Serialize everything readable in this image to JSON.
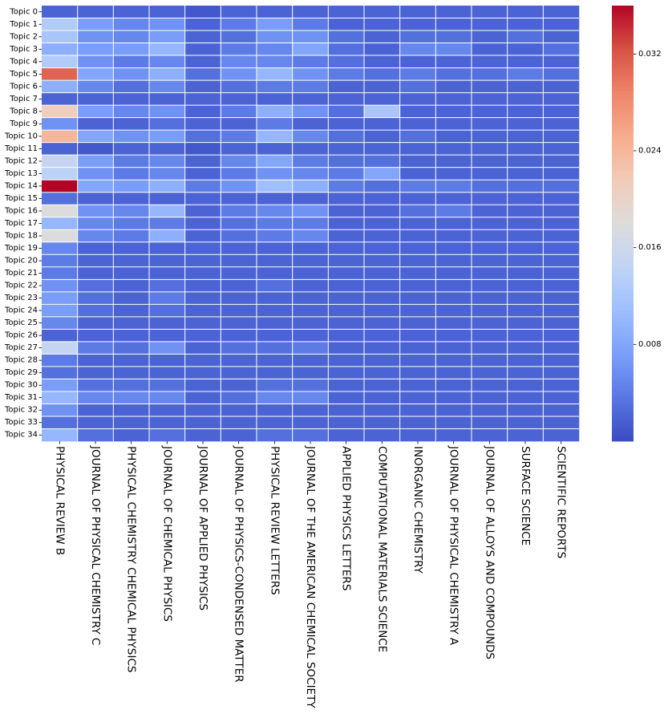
{
  "chart_data": {
    "type": "heatmap",
    "title": "",
    "xlabel": "",
    "ylabel": "",
    "rows": [
      "Topic 0",
      "Topic 1",
      "Topic 2",
      "Topic 3",
      "Topic 4",
      "Topic 5",
      "Topic 6",
      "Topic 7",
      "Topic 8",
      "Topic 9",
      "Topic 10",
      "Topic 11",
      "Topic 12",
      "Topic 13",
      "Topic 14",
      "Topic 15",
      "Topic 16",
      "Topic 17",
      "Topic 18",
      "Topic 19",
      "Topic 20",
      "Topic 21",
      "Topic 22",
      "Topic 23",
      "Topic 24",
      "Topic 25",
      "Topic 26",
      "Topic 27",
      "Topic 28",
      "Topic 29",
      "Topic 30",
      "Topic 31",
      "Topic 32",
      "Topic 33",
      "Topic 34"
    ],
    "columns": [
      "PHYSICAL REVIEW B",
      "JOURNAL OF PHYSICAL CHEMISTRY C",
      "PHYSICAL CHEMISTRY CHEMICAL PHYSICS",
      "JOURNAL OF CHEMICAL PHYSICS",
      "JOURNAL OF APPLIED PHYSICS",
      "JOURNAL OF PHYSICS-CONDENSED MATTER",
      "PHYSICAL REVIEW LETTERS",
      "JOURNAL OF THE AMERICAN CHEMICAL SOCIETY",
      "APPLIED PHYSICS LETTERS",
      "COMPUTATIONAL MATERIALS SCIENCE",
      "INORGANIC CHEMISTRY",
      "JOURNAL OF PHYSICAL CHEMISTRY A",
      "JOURNAL OF ALLOYS AND COMPOUNDS",
      "SURFACE SCIENCE",
      "SCIENTIFIC REPORTS"
    ],
    "values": [
      [
        0.002,
        0.002,
        0.002,
        0.002,
        0.001,
        0.002,
        0.002,
        0.002,
        0.002,
        0.002,
        0.002,
        0.002,
        0.002,
        0.002,
        0.002
      ],
      [
        0.013,
        0.007,
        0.005,
        0.006,
        0.002,
        0.004,
        0.007,
        0.004,
        0.002,
        0.002,
        0.002,
        0.002,
        0.002,
        0.002,
        0.002
      ],
      [
        0.012,
        0.006,
        0.005,
        0.007,
        0.002,
        0.003,
        0.006,
        0.006,
        0.003,
        0.002,
        0.003,
        0.003,
        0.002,
        0.003,
        0.002
      ],
      [
        0.009,
        0.007,
        0.007,
        0.01,
        0.002,
        0.004,
        0.005,
        0.008,
        0.003,
        0.002,
        0.005,
        0.005,
        0.002,
        0.002,
        0.003
      ],
      [
        0.013,
        0.006,
        0.004,
        0.005,
        0.002,
        0.005,
        0.005,
        0.004,
        0.003,
        0.002,
        0.002,
        0.002,
        0.002,
        0.002,
        0.002
      ],
      [
        0.031,
        0.008,
        0.006,
        0.009,
        0.003,
        0.006,
        0.01,
        0.006,
        0.004,
        0.003,
        0.004,
        0.003,
        0.003,
        0.004,
        0.003
      ],
      [
        0.009,
        0.005,
        0.003,
        0.005,
        0.002,
        0.003,
        0.004,
        0.004,
        0.002,
        0.002,
        0.003,
        0.002,
        0.002,
        0.002,
        0.002
      ],
      [
        0.002,
        0.002,
        0.002,
        0.002,
        0.002,
        0.002,
        0.002,
        0.002,
        0.002,
        0.002,
        0.002,
        0.002,
        0.002,
        0.002,
        0.002
      ],
      [
        0.021,
        0.007,
        0.005,
        0.006,
        0.002,
        0.004,
        0.009,
        0.006,
        0.003,
        0.012,
        0.002,
        0.002,
        0.002,
        0.002,
        0.002
      ],
      [
        0.006,
        0.002,
        0.002,
        0.003,
        0.002,
        0.002,
        0.004,
        0.002,
        0.002,
        0.002,
        0.002,
        0.002,
        0.002,
        0.002,
        0.002
      ],
      [
        0.024,
        0.008,
        0.006,
        0.007,
        0.003,
        0.004,
        0.01,
        0.005,
        0.003,
        0.002,
        0.003,
        0.002,
        0.002,
        0.002,
        0.002
      ],
      [
        0.002,
        0.001,
        0.002,
        0.002,
        0.001,
        0.002,
        0.002,
        0.002,
        0.002,
        0.002,
        0.002,
        0.002,
        0.002,
        0.002,
        0.002
      ],
      [
        0.015,
        0.007,
        0.004,
        0.005,
        0.002,
        0.005,
        0.008,
        0.004,
        0.003,
        0.003,
        0.002,
        0.002,
        0.002,
        0.002,
        0.002
      ],
      [
        0.014,
        0.006,
        0.004,
        0.005,
        0.002,
        0.004,
        0.006,
        0.005,
        0.004,
        0.008,
        0.002,
        0.002,
        0.002,
        0.002,
        0.002
      ],
      [
        0.036,
        0.008,
        0.007,
        0.009,
        0.004,
        0.006,
        0.011,
        0.009,
        0.004,
        0.003,
        0.004,
        0.004,
        0.003,
        0.003,
        0.003
      ],
      [
        0.003,
        0.002,
        0.002,
        0.002,
        0.002,
        0.002,
        0.002,
        0.002,
        0.002,
        0.002,
        0.002,
        0.002,
        0.002,
        0.002,
        0.002
      ],
      [
        0.018,
        0.006,
        0.005,
        0.01,
        0.002,
        0.004,
        0.005,
        0.006,
        0.002,
        0.002,
        0.003,
        0.004,
        0.002,
        0.002,
        0.002
      ],
      [
        0.01,
        0.005,
        0.004,
        0.004,
        0.002,
        0.003,
        0.004,
        0.004,
        0.002,
        0.002,
        0.002,
        0.002,
        0.002,
        0.002,
        0.002
      ],
      [
        0.018,
        0.005,
        0.004,
        0.009,
        0.002,
        0.003,
        0.004,
        0.005,
        0.002,
        0.002,
        0.002,
        0.002,
        0.002,
        0.002,
        0.002
      ],
      [
        0.005,
        0.002,
        0.002,
        0.002,
        0.002,
        0.002,
        0.002,
        0.002,
        0.002,
        0.002,
        0.002,
        0.002,
        0.002,
        0.002,
        0.002
      ],
      [
        0.004,
        0.002,
        0.002,
        0.002,
        0.002,
        0.002,
        0.002,
        0.002,
        0.002,
        0.002,
        0.002,
        0.002,
        0.002,
        0.002,
        0.002
      ],
      [
        0.004,
        0.002,
        0.002,
        0.002,
        0.002,
        0.002,
        0.002,
        0.002,
        0.002,
        0.002,
        0.002,
        0.002,
        0.002,
        0.002,
        0.002
      ],
      [
        0.006,
        0.003,
        0.002,
        0.003,
        0.002,
        0.002,
        0.003,
        0.002,
        0.002,
        0.002,
        0.002,
        0.002,
        0.002,
        0.002,
        0.002
      ],
      [
        0.007,
        0.003,
        0.002,
        0.004,
        0.002,
        0.002,
        0.002,
        0.002,
        0.002,
        0.002,
        0.002,
        0.002,
        0.002,
        0.002,
        0.002
      ],
      [
        0.007,
        0.003,
        0.002,
        0.003,
        0.002,
        0.002,
        0.002,
        0.002,
        0.002,
        0.002,
        0.002,
        0.002,
        0.002,
        0.002,
        0.002
      ],
      [
        0.005,
        0.002,
        0.002,
        0.002,
        0.002,
        0.002,
        0.002,
        0.002,
        0.002,
        0.002,
        0.002,
        0.002,
        0.002,
        0.002,
        0.002
      ],
      [
        0.002,
        0.002,
        0.002,
        0.002,
        0.002,
        0.002,
        0.002,
        0.002,
        0.002,
        0.002,
        0.002,
        0.002,
        0.002,
        0.002,
        0.002
      ],
      [
        0.015,
        0.004,
        0.003,
        0.006,
        0.002,
        0.003,
        0.003,
        0.004,
        0.002,
        0.002,
        0.002,
        0.002,
        0.002,
        0.002,
        0.002
      ],
      [
        0.004,
        0.002,
        0.002,
        0.002,
        0.002,
        0.002,
        0.002,
        0.002,
        0.002,
        0.002,
        0.002,
        0.002,
        0.002,
        0.002,
        0.002
      ],
      [
        0.003,
        0.002,
        0.002,
        0.002,
        0.002,
        0.002,
        0.002,
        0.002,
        0.002,
        0.002,
        0.002,
        0.002,
        0.002,
        0.002,
        0.002
      ],
      [
        0.007,
        0.003,
        0.003,
        0.003,
        0.002,
        0.002,
        0.003,
        0.003,
        0.002,
        0.002,
        0.002,
        0.002,
        0.002,
        0.002,
        0.002
      ],
      [
        0.01,
        0.005,
        0.005,
        0.005,
        0.002,
        0.003,
        0.005,
        0.005,
        0.002,
        0.002,
        0.002,
        0.002,
        0.002,
        0.002,
        0.002
      ],
      [
        0.006,
        0.002,
        0.002,
        0.002,
        0.002,
        0.002,
        0.002,
        0.002,
        0.002,
        0.002,
        0.002,
        0.002,
        0.002,
        0.002,
        0.002
      ],
      [
        0.003,
        0.002,
        0.002,
        0.002,
        0.002,
        0.002,
        0.002,
        0.002,
        0.002,
        0.002,
        0.002,
        0.002,
        0.002,
        0.002,
        0.002
      ],
      [
        0.01,
        0.003,
        0.002,
        0.003,
        0.002,
        0.002,
        0.003,
        0.003,
        0.002,
        0.002,
        0.002,
        0.002,
        0.002,
        0.002,
        0.002
      ]
    ],
    "colormap": "coolwarm",
    "colormap_stops": [
      "#3b4cc0",
      "#5977e3",
      "#7b9ff9",
      "#9ebeff",
      "#c0d4f5",
      "#dddcdc",
      "#f2cbb7",
      "#f7ac8e",
      "#ee8468",
      "#d65244",
      "#b40426"
    ],
    "vmin": 0.0,
    "vmax": 0.036,
    "colorbar": {
      "ticks": [
        0.008,
        0.016,
        0.024,
        0.032
      ],
      "tick_labels": [
        "0.008",
        "0.016",
        "0.024",
        "0.032"
      ]
    },
    "grid_line_color": "#ffffff",
    "background": "#ffffff"
  }
}
